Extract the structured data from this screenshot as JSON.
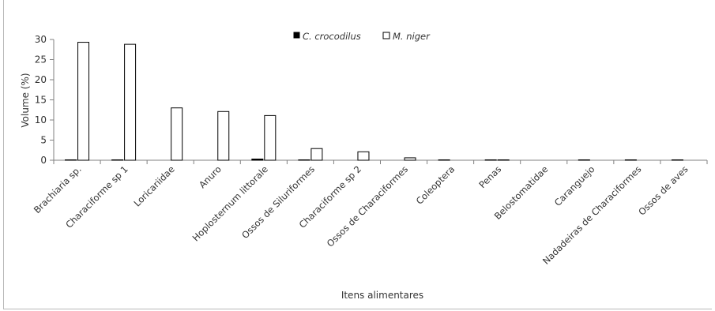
{
  "chart_data": {
    "type": "bar",
    "xlabel": "Itens alimentares",
    "ylabel": "Volume (%)",
    "ylim": [
      0,
      30
    ],
    "yticks": [
      0,
      5,
      10,
      15,
      20,
      25,
      30
    ],
    "grid": false,
    "legend_position": "top-center",
    "categories": [
      "Brachiaria sp.",
      "Characiforme sp 1",
      "Loricariidae",
      "Anuro",
      "Hoplosternum littorale",
      "Ossos de Siluriformes",
      "Characiforme sp 2",
      "Ossos de Characiformes",
      "Coleoptera",
      "Penas",
      "Belostomatidae",
      "Caranguejo",
      "Nadadeiras de Characiformes",
      "Ossos de aves"
    ],
    "series": [
      {
        "name": "C. crocodilus",
        "color": "#000000",
        "values": [
          0.1,
          0.1,
          0,
          0,
          0.3,
          0.1,
          0,
          0,
          0.1,
          0.1,
          0,
          0.1,
          0.1,
          0.1
        ]
      },
      {
        "name": "M. niger",
        "color": "#ffffff",
        "values": [
          29.3,
          28.8,
          13.0,
          12.1,
          11.1,
          2.9,
          2.1,
          0.6,
          0,
          0.1,
          0,
          0,
          0,
          0
        ]
      }
    ]
  }
}
